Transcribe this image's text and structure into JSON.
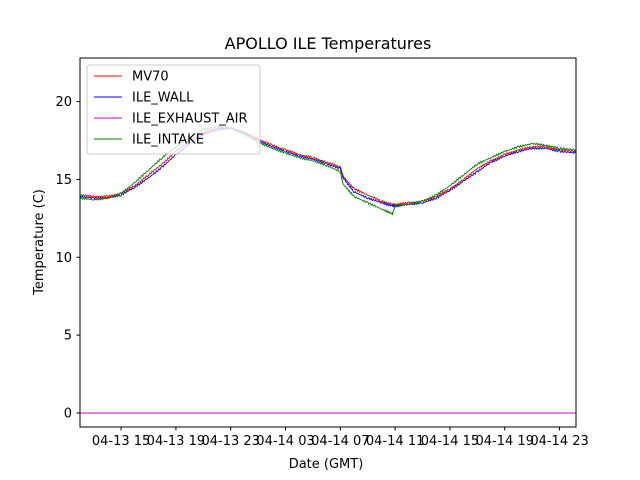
{
  "chart_data": {
    "type": "line",
    "title": "APOLLO ILE Temperatures",
    "xlabel": "Date (GMT)",
    "ylabel": "Temperature (C)",
    "x_unit": "hours since 04-13 12:00 GMT",
    "xlim": [
      0,
      36.2
    ],
    "ylim": [
      -0.9,
      22.8
    ],
    "yticks": [
      0,
      5,
      10,
      15,
      20
    ],
    "xticks": [
      {
        "x": 3,
        "label": "04-13 15"
      },
      {
        "x": 7,
        "label": "04-13 19"
      },
      {
        "x": 11,
        "label": "04-13 23"
      },
      {
        "x": 15,
        "label": "04-14 03"
      },
      {
        "x": 19,
        "label": "04-14 07"
      },
      {
        "x": 23,
        "label": "04-14 11"
      },
      {
        "x": 27,
        "label": "04-14 15"
      },
      {
        "x": 31,
        "label": "04-14 19"
      },
      {
        "x": 35,
        "label": "04-14 23"
      }
    ],
    "legend_position": "top-left",
    "series": [
      {
        "name": "MV70",
        "color": "#ff0000",
        "x": [
          0,
          1,
          2,
          3,
          4,
          5,
          6,
          7,
          8,
          9,
          10,
          11,
          12,
          13,
          14,
          15,
          16,
          17,
          18,
          19,
          19.2,
          20,
          21,
          22,
          22.8,
          23,
          24,
          25,
          26,
          27,
          28,
          29,
          30,
          31,
          32,
          33,
          34,
          35,
          36.2
        ],
        "y": [
          14.0,
          13.9,
          13.9,
          14.1,
          14.6,
          15.3,
          16.0,
          16.8,
          17.5,
          18.0,
          18.3,
          18.3,
          18.0,
          17.6,
          17.2,
          16.9,
          16.6,
          16.4,
          16.1,
          15.8,
          15.2,
          14.4,
          14.0,
          13.6,
          13.4,
          13.4,
          13.5,
          13.6,
          13.9,
          14.4,
          15.0,
          15.7,
          16.2,
          16.6,
          16.9,
          17.1,
          17.1,
          16.9,
          16.8
        ]
      },
      {
        "name": "ILE_WALL",
        "color": "#0000ff",
        "x": [
          0,
          1,
          2,
          3,
          4,
          5,
          6,
          7,
          8,
          9,
          10,
          11,
          12,
          13,
          14,
          15,
          16,
          17,
          18,
          19,
          19.2,
          20,
          21,
          22,
          22.8,
          23,
          24,
          25,
          26,
          27,
          28,
          29,
          30,
          31,
          32,
          33,
          34,
          35,
          36.2
        ],
        "y": [
          13.9,
          13.8,
          13.8,
          14.0,
          14.5,
          15.1,
          15.8,
          16.6,
          17.3,
          17.9,
          18.2,
          18.3,
          18.0,
          17.5,
          17.1,
          16.8,
          16.5,
          16.3,
          16.0,
          15.7,
          15.1,
          14.2,
          13.8,
          13.5,
          13.3,
          13.3,
          13.4,
          13.5,
          13.8,
          14.3,
          14.9,
          15.5,
          16.1,
          16.5,
          16.8,
          17.0,
          17.0,
          16.8,
          16.7
        ]
      },
      {
        "name": "ILE_EXHAUST_AIR",
        "color": "#bf00bf",
        "x": [
          0,
          36.2
        ],
        "y": [
          0,
          0
        ]
      },
      {
        "name": "ILE_INTAKE",
        "color": "#008000",
        "x": [
          0,
          1,
          2,
          3,
          4,
          5,
          6,
          7,
          8,
          9,
          10,
          11,
          12,
          13,
          14,
          15,
          16,
          17,
          18,
          19,
          19.2,
          20,
          21,
          22,
          22.8,
          23,
          24,
          25,
          26,
          27,
          28,
          29,
          30,
          31,
          32,
          33,
          34,
          35,
          36.2
        ],
        "y": [
          13.8,
          13.7,
          13.8,
          14.1,
          14.8,
          15.6,
          16.4,
          17.1,
          17.7,
          18.2,
          18.4,
          18.3,
          17.9,
          17.4,
          17.0,
          16.7,
          16.4,
          16.2,
          15.9,
          15.5,
          14.7,
          13.9,
          13.5,
          13.1,
          12.8,
          13.3,
          13.4,
          13.6,
          14.0,
          14.6,
          15.3,
          16.0,
          16.4,
          16.8,
          17.1,
          17.3,
          17.2,
          17.0,
          16.9
        ]
      }
    ]
  }
}
